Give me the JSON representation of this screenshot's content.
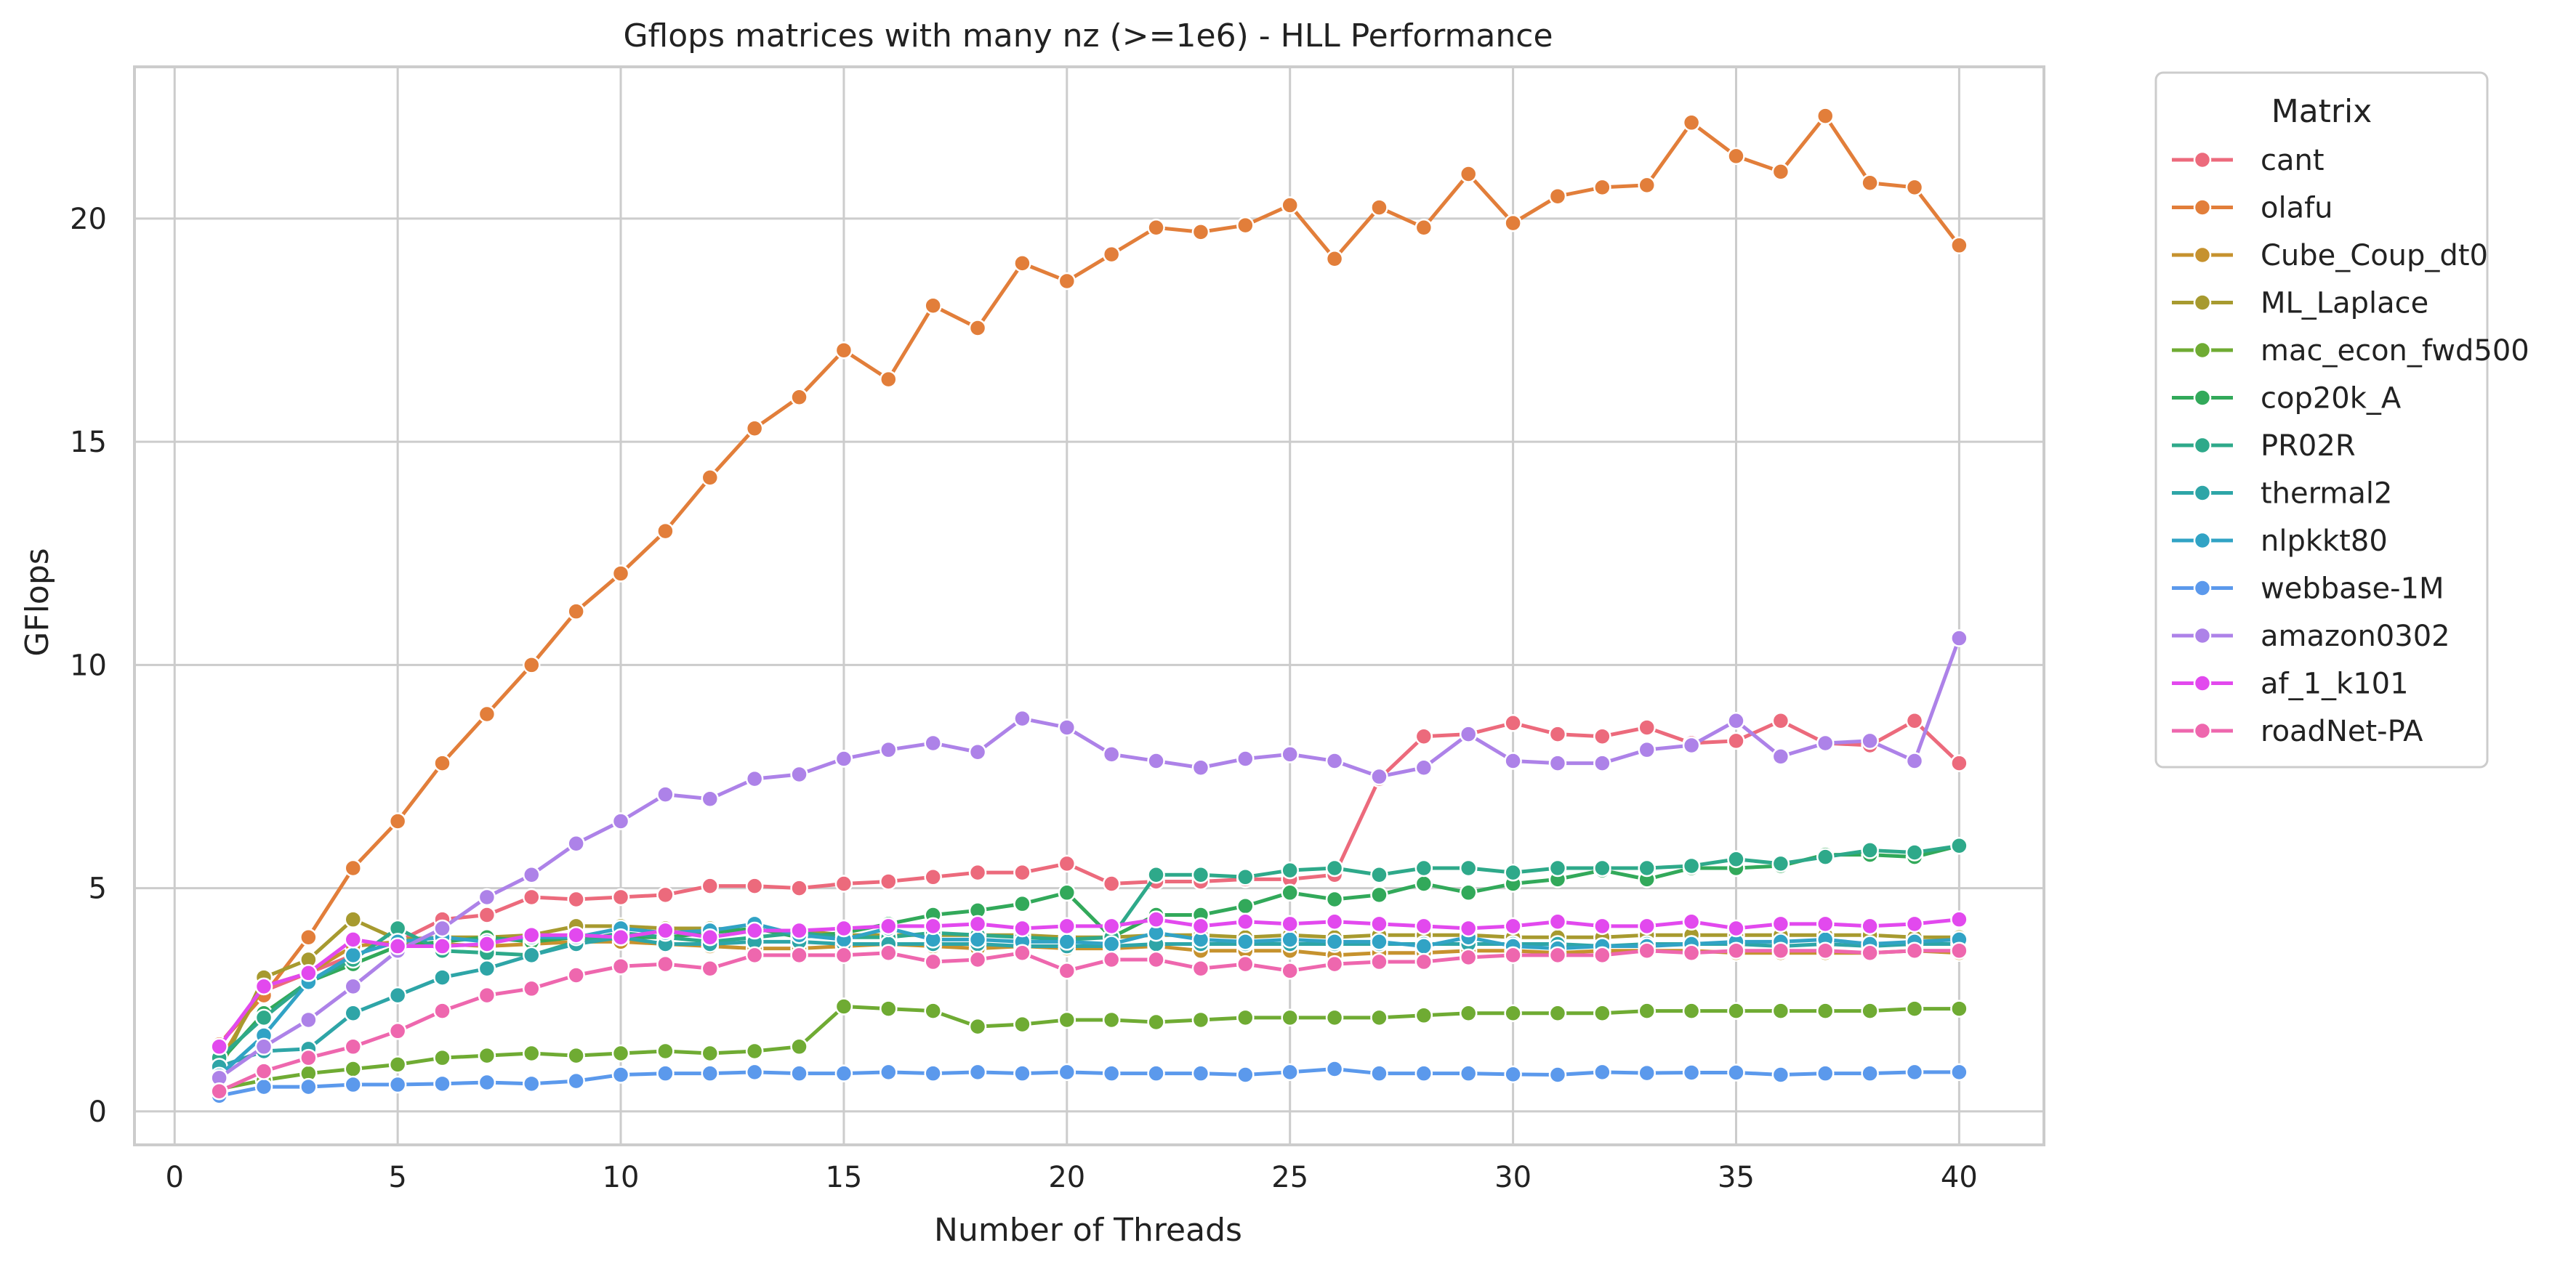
{
  "chart_data": {
    "type": "line",
    "title": "Gflops matrices with many nz (>=1e6) - HLL Performance",
    "xlabel": "Number of Threads",
    "ylabel": "GFlops",
    "xlim": [
      -0.9,
      41.9
    ],
    "ylim": [
      -0.75,
      23.4
    ],
    "xticks": [
      0,
      5,
      10,
      15,
      20,
      25,
      30,
      35,
      40
    ],
    "yticks": [
      0,
      5,
      10,
      15,
      20
    ],
    "grid": true,
    "legend": {
      "title": "Matrix",
      "placement": "outside-right-top"
    },
    "x": [
      1,
      2,
      3,
      4,
      5,
      6,
      7,
      8,
      9,
      10,
      11,
      12,
      13,
      14,
      15,
      16,
      17,
      18,
      19,
      20,
      21,
      22,
      23,
      24,
      25,
      26,
      27,
      28,
      29,
      30,
      31,
      32,
      33,
      34,
      35,
      36,
      37,
      38,
      39,
      40
    ],
    "series": [
      {
        "name": "cant",
        "color": "#ec6a7c",
        "values": [
          1.5,
          2.7,
          3.1,
          3.5,
          3.8,
          4.3,
          4.4,
          4.8,
          4.75,
          4.8,
          4.85,
          5.05,
          5.05,
          5.0,
          5.1,
          5.15,
          5.25,
          5.35,
          5.35,
          5.55,
          5.1,
          5.15,
          5.15,
          5.2,
          5.2,
          5.3,
          7.45,
          8.4,
          8.45,
          8.7,
          8.45,
          8.4,
          8.6,
          8.25,
          8.3,
          8.75,
          8.25,
          8.2,
          8.75,
          7.8
        ]
      },
      {
        "name": "olafu",
        "color": "#e27e3a",
        "values": [
          1.5,
          2.6,
          3.9,
          5.45,
          6.5,
          7.8,
          8.9,
          10.0,
          11.2,
          12.05,
          13.0,
          14.2,
          15.3,
          16.0,
          17.05,
          16.4,
          18.05,
          17.55,
          19.0,
          18.6,
          19.2,
          19.8,
          19.7,
          19.85,
          20.3,
          19.1,
          20.25,
          19.8,
          21.0,
          19.9,
          20.5,
          20.7,
          20.75,
          22.15,
          21.4,
          21.05,
          22.3,
          20.8,
          20.7,
          19.4
        ]
      },
      {
        "name": "Cube_Coup_dt0",
        "color": "#c6922e",
        "values": [
          1.1,
          2.8,
          3.1,
          3.7,
          3.8,
          3.75,
          3.7,
          3.75,
          3.8,
          3.8,
          3.75,
          3.7,
          3.65,
          3.65,
          3.7,
          3.75,
          3.7,
          3.65,
          3.7,
          3.65,
          3.65,
          3.7,
          3.6,
          3.6,
          3.6,
          3.5,
          3.55,
          3.55,
          3.6,
          3.6,
          3.55,
          3.6,
          3.6,
          3.6,
          3.55,
          3.55,
          3.55,
          3.55,
          3.6,
          3.55
        ]
      },
      {
        "name": "ML_Laplace",
        "color": "#a79a2f",
        "values": [
          0.9,
          3.0,
          3.4,
          4.3,
          3.85,
          3.9,
          3.9,
          3.95,
          4.15,
          4.15,
          4.1,
          4.1,
          4.05,
          4.05,
          3.95,
          3.95,
          3.95,
          3.95,
          3.95,
          3.9,
          3.9,
          3.95,
          3.95,
          3.9,
          3.95,
          3.9,
          3.95,
          3.95,
          3.95,
          3.9,
          3.9,
          3.9,
          3.95,
          3.95,
          3.95,
          3.95,
          3.95,
          3.95,
          3.9,
          3.9
        ]
      },
      {
        "name": "mac_econ_fwd500",
        "color": "#6fab33",
        "values": [
          0.5,
          0.7,
          0.85,
          0.95,
          1.05,
          1.2,
          1.25,
          1.3,
          1.25,
          1.3,
          1.35,
          1.3,
          1.35,
          1.45,
          2.35,
          2.3,
          2.25,
          1.9,
          1.95,
          2.05,
          2.05,
          2.0,
          2.05,
          2.1,
          2.1,
          2.1,
          2.1,
          2.15,
          2.2,
          2.2,
          2.2,
          2.2,
          2.25,
          2.25,
          2.25,
          2.25,
          2.25,
          2.25,
          2.3,
          2.3
        ]
      },
      {
        "name": "cop20k_A",
        "color": "#32a95a",
        "values": [
          1.1,
          2.2,
          2.9,
          3.3,
          3.7,
          3.8,
          3.9,
          3.8,
          3.9,
          3.9,
          3.9,
          4.0,
          4.1,
          3.9,
          4.0,
          4.2,
          4.4,
          4.5,
          4.65,
          4.9,
          3.9,
          4.4,
          4.4,
          4.6,
          4.9,
          4.75,
          4.85,
          5.1,
          4.9,
          5.1,
          5.2,
          5.4,
          5.2,
          5.45,
          5.45,
          5.5,
          5.75,
          5.75,
          5.7,
          5.95
        ]
      },
      {
        "name": "PR02R",
        "color": "#2ea98a",
        "values": [
          1.2,
          2.1,
          2.9,
          3.4,
          4.1,
          3.6,
          3.55,
          3.5,
          3.8,
          4.0,
          3.9,
          3.8,
          3.9,
          4.0,
          3.9,
          3.9,
          4.0,
          3.95,
          3.9,
          3.85,
          3.9,
          5.3,
          5.3,
          5.25,
          5.4,
          5.45,
          5.3,
          5.45,
          5.45,
          5.35,
          5.45,
          5.45,
          5.45,
          5.5,
          5.65,
          5.55,
          5.7,
          5.85,
          5.8,
          5.95
        ]
      },
      {
        "name": "thermal2",
        "color": "#2ea5a7",
        "values": [
          1.0,
          1.35,
          1.4,
          2.2,
          2.6,
          3.0,
          3.2,
          3.5,
          3.75,
          3.9,
          3.75,
          3.75,
          3.8,
          3.8,
          3.75,
          3.75,
          3.75,
          3.75,
          3.7,
          3.7,
          3.7,
          3.75,
          3.75,
          3.75,
          3.75,
          3.75,
          3.75,
          3.75,
          3.75,
          3.75,
          3.75,
          3.7,
          3.75,
          3.75,
          3.75,
          3.7,
          3.75,
          3.7,
          3.75,
          3.75
        ]
      },
      {
        "name": "nlpkkt80",
        "color": "#31a3c5",
        "values": [
          0.8,
          1.7,
          2.9,
          3.5,
          3.8,
          3.9,
          3.8,
          3.9,
          3.9,
          4.1,
          4.0,
          4.05,
          4.2,
          3.95,
          3.85,
          4.1,
          3.85,
          3.85,
          3.8,
          3.8,
          3.75,
          4.0,
          3.85,
          3.8,
          3.85,
          3.8,
          3.8,
          3.7,
          3.9,
          3.7,
          3.65,
          3.7,
          3.7,
          3.75,
          3.8,
          3.8,
          3.85,
          3.75,
          3.8,
          3.85
        ]
      },
      {
        "name": "webbase-1M",
        "color": "#5b99ec",
        "values": [
          0.35,
          0.55,
          0.55,
          0.6,
          0.6,
          0.62,
          0.65,
          0.62,
          0.68,
          0.82,
          0.85,
          0.85,
          0.88,
          0.85,
          0.85,
          0.88,
          0.85,
          0.88,
          0.85,
          0.88,
          0.85,
          0.85,
          0.85,
          0.82,
          0.88,
          0.95,
          0.85,
          0.85,
          0.85,
          0.83,
          0.82,
          0.88,
          0.86,
          0.87,
          0.87,
          0.82,
          0.85,
          0.85,
          0.88,
          0.88
        ]
      },
      {
        "name": "amazon0302",
        "color": "#ad82e8",
        "values": [
          0.75,
          1.45,
          2.05,
          2.8,
          3.6,
          4.1,
          4.8,
          5.3,
          6.0,
          6.5,
          7.1,
          7.0,
          7.45,
          7.55,
          7.9,
          8.1,
          8.25,
          8.05,
          8.8,
          8.6,
          8.0,
          7.85,
          7.7,
          7.9,
          8.0,
          7.85,
          7.5,
          7.7,
          8.45,
          7.85,
          7.8,
          7.8,
          8.1,
          8.2,
          8.75,
          7.95,
          8.25,
          8.3,
          7.85,
          10.6
        ]
      },
      {
        "name": "af_1_k101",
        "color": "#e249ee",
        "values": [
          1.45,
          2.8,
          3.1,
          3.85,
          3.7,
          3.7,
          3.75,
          3.95,
          3.95,
          3.9,
          4.05,
          3.9,
          4.05,
          4.05,
          4.1,
          4.15,
          4.15,
          4.2,
          4.1,
          4.15,
          4.15,
          4.3,
          4.15,
          4.25,
          4.2,
          4.25,
          4.2,
          4.15,
          4.1,
          4.15,
          4.25,
          4.15,
          4.15,
          4.25,
          4.1,
          4.2,
          4.2,
          4.15,
          4.2,
          4.3
        ]
      },
      {
        "name": "roadNet-PA",
        "color": "#ee67ae",
        "values": [
          0.45,
          0.9,
          1.2,
          1.45,
          1.8,
          2.25,
          2.6,
          2.75,
          3.05,
          3.25,
          3.3,
          3.2,
          3.5,
          3.5,
          3.5,
          3.55,
          3.35,
          3.4,
          3.55,
          3.15,
          3.4,
          3.4,
          3.2,
          3.3,
          3.15,
          3.3,
          3.35,
          3.35,
          3.45,
          3.5,
          3.5,
          3.5,
          3.6,
          3.55,
          3.6,
          3.6,
          3.6,
          3.55,
          3.6,
          3.6
        ]
      }
    ]
  }
}
